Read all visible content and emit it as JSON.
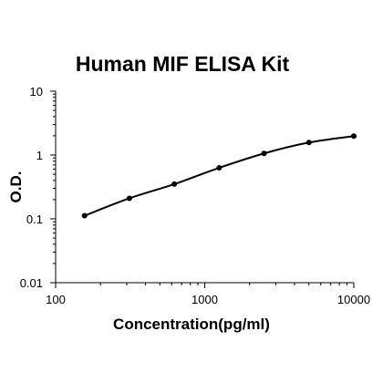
{
  "chart_data": {
    "type": "line",
    "title": "Human MIF ELISA Kit",
    "xlabel": "Concentration(pg/ml)",
    "ylabel": "O.D.",
    "xscale": "log",
    "yscale": "log",
    "xlim": [
      100,
      10000
    ],
    "ylim": [
      0.01,
      10
    ],
    "xticks": [
      "100",
      "1000",
      "10000"
    ],
    "yticks": [
      "10",
      "1",
      "0.1",
      "0.01"
    ],
    "grid": false,
    "legend": "none",
    "series": [
      {
        "x": [
          156.25,
          312.5,
          625,
          1250,
          2500,
          5000,
          10000
        ],
        "y": [
          0.112,
          0.21,
          0.35,
          0.63,
          1.06,
          1.57,
          1.98
        ]
      }
    ],
    "color": "#000000"
  }
}
